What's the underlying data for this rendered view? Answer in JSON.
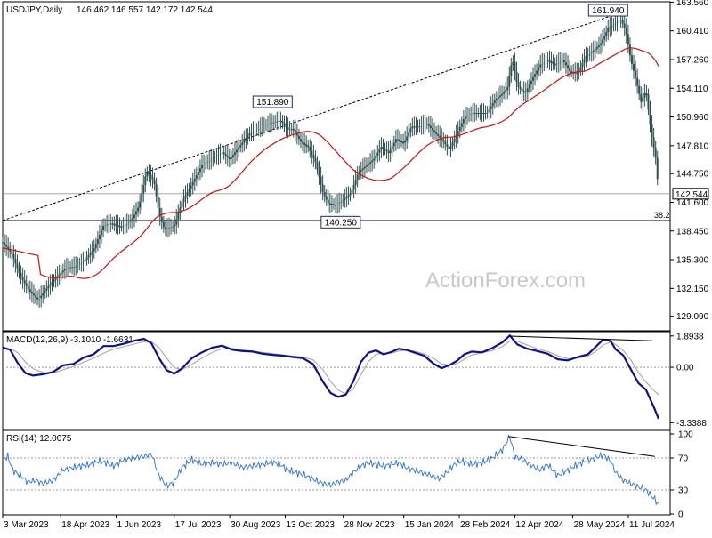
{
  "header": {
    "symbol": "USDJPY,Daily",
    "ohlc": "146.462 146.557 142.172 142.544",
    "watermark": "ActionForex.com"
  },
  "chart_data": [
    {
      "type": "candlestick",
      "title": "USDJPY,Daily",
      "ylim": [
        127.5,
        163.6
      ],
      "y_ticks": [
        "163.560",
        "160.410",
        "157.260",
        "154.110",
        "150.960",
        "147.810",
        "144.750",
        "141.600",
        "138.450",
        "135.300",
        "132.150",
        "129.090"
      ],
      "x_ticks": [
        "3 Mar 2023",
        "18 Apr 2023",
        "1 Jun 2023",
        "17 Jul 2023",
        "30 Aug 2023",
        "13 Oct 2023",
        "28 Nov 2023",
        "15 Jan 2024",
        "28 Feb 2024",
        "12 Apr 2024",
        "28 May 2024",
        "11 Jul 2024"
      ],
      "x_tick_days": [
        0,
        46,
        90,
        136,
        180,
        224,
        270,
        318,
        362,
        406,
        452,
        496
      ],
      "last_price": "142.544",
      "level_line": {
        "value": 139.6,
        "label": "38.2"
      },
      "annotations": [
        {
          "label": "151.890",
          "day": 214,
          "value": 151.89
        },
        {
          "label": "140.250",
          "day": 268,
          "value": 140.25
        },
        {
          "label": "161.940",
          "day": 480,
          "value": 161.94
        }
      ],
      "trendline": [
        [
          0,
          139.6
        ],
        [
          480,
          161.94
        ]
      ],
      "price_path": [
        [
          0,
          137.2
        ],
        [
          7,
          136.0
        ],
        [
          14,
          133.5
        ],
        [
          21,
          131.9
        ],
        [
          28,
          130.9
        ],
        [
          35,
          132.2
        ],
        [
          42,
          133.3
        ],
        [
          50,
          134.4
        ],
        [
          58,
          134.6
        ],
        [
          64,
          135.1
        ],
        [
          72,
          136.4
        ],
        [
          80,
          139.1
        ],
        [
          86,
          139.3
        ],
        [
          94,
          138.9
        ],
        [
          102,
          139.6
        ],
        [
          108,
          141.2
        ],
        [
          114,
          145.0
        ],
        [
          120,
          143.9
        ],
        [
          124,
          140.3
        ],
        [
          128,
          138.7
        ],
        [
          136,
          139.0
        ],
        [
          142,
          141.6
        ],
        [
          150,
          143.6
        ],
        [
          158,
          145.7
        ],
        [
          166,
          146.4
        ],
        [
          174,
          147.1
        ],
        [
          180,
          146.3
        ],
        [
          188,
          147.8
        ],
        [
          196,
          149.2
        ],
        [
          204,
          149.8
        ],
        [
          212,
          150.3
        ],
        [
          220,
          150.6
        ],
        [
          226,
          149.6
        ],
        [
          230,
          149.7
        ],
        [
          236,
          148.3
        ],
        [
          242,
          147.7
        ],
        [
          248,
          146.0
        ],
        [
          254,
          142.6
        ],
        [
          258,
          141.5
        ],
        [
          264,
          141.3
        ],
        [
          270,
          141.9
        ],
        [
          276,
          142.6
        ],
        [
          282,
          144.9
        ],
        [
          288,
          145.6
        ],
        [
          294,
          146.3
        ],
        [
          300,
          147.7
        ],
        [
          306,
          147.0
        ],
        [
          312,
          148.6
        ],
        [
          318,
          148.1
        ],
        [
          324,
          149.9
        ],
        [
          330,
          149.9
        ],
        [
          336,
          150.3
        ],
        [
          342,
          149.3
        ],
        [
          348,
          148.5
        ],
        [
          354,
          147.4
        ],
        [
          360,
          149.1
        ],
        [
          366,
          150.9
        ],
        [
          372,
          151.4
        ],
        [
          378,
          151.4
        ],
        [
          384,
          151.4
        ],
        [
          390,
          152.8
        ],
        [
          396,
          153.5
        ],
        [
          400,
          154.1
        ],
        [
          404,
          157.4
        ],
        [
          408,
          154.4
        ],
        [
          414,
          153.5
        ],
        [
          420,
          155.2
        ],
        [
          426,
          156.7
        ],
        [
          432,
          157.2
        ],
        [
          438,
          156.7
        ],
        [
          444,
          157.2
        ],
        [
          450,
          155.9
        ],
        [
          456,
          155.8
        ],
        [
          462,
          157.6
        ],
        [
          468,
          158.2
        ],
        [
          474,
          159.0
        ],
        [
          480,
          160.7
        ],
        [
          486,
          161.3
        ],
        [
          490,
          161.7
        ],
        [
          494,
          160.4
        ],
        [
          498,
          157.2
        ],
        [
          502,
          155.1
        ],
        [
          506,
          152.6
        ],
        [
          510,
          153.9
        ],
        [
          514,
          149.3
        ],
        [
          518,
          146.2
        ],
        [
          520,
          142.5
        ]
      ]
    },
    {
      "type": "line",
      "title": "MACD(12,26,9) -3.1010 -1.6631",
      "ylim": [
        -3.75,
        2.15
      ],
      "y_ticks": [
        "1.8938",
        "0.00",
        "-3.3388"
      ],
      "main_path": [
        [
          0,
          1.2
        ],
        [
          6,
          1.05
        ],
        [
          12,
          0.25
        ],
        [
          18,
          -0.35
        ],
        [
          24,
          -0.5
        ],
        [
          32,
          -0.42
        ],
        [
          40,
          -0.28
        ],
        [
          48,
          0.12
        ],
        [
          56,
          0.2
        ],
        [
          64,
          0.58
        ],
        [
          72,
          0.78
        ],
        [
          80,
          1.28
        ],
        [
          88,
          1.28
        ],
        [
          96,
          1.42
        ],
        [
          104,
          1.6
        ],
        [
          112,
          1.72
        ],
        [
          118,
          1.45
        ],
        [
          124,
          0.55
        ],
        [
          130,
          -0.18
        ],
        [
          136,
          -0.38
        ],
        [
          142,
          -0.08
        ],
        [
          150,
          0.55
        ],
        [
          158,
          0.9
        ],
        [
          166,
          1.18
        ],
        [
          174,
          1.3
        ],
        [
          182,
          1.06
        ],
        [
          190,
          0.98
        ],
        [
          198,
          0.95
        ],
        [
          206,
          0.82
        ],
        [
          214,
          0.75
        ],
        [
          222,
          0.7
        ],
        [
          230,
          0.62
        ],
        [
          238,
          0.55
        ],
        [
          246,
          0.2
        ],
        [
          254,
          -0.88
        ],
        [
          260,
          -1.55
        ],
        [
          266,
          -1.78
        ],
        [
          272,
          -1.65
        ],
        [
          278,
          -0.85
        ],
        [
          284,
          0.32
        ],
        [
          290,
          0.88
        ],
        [
          296,
          1.02
        ],
        [
          302,
          0.78
        ],
        [
          308,
          0.92
        ],
        [
          314,
          1.12
        ],
        [
          320,
          1.05
        ],
        [
          326,
          0.9
        ],
        [
          334,
          0.7
        ],
        [
          342,
          0.2
        ],
        [
          348,
          -0.05
        ],
        [
          354,
          0.12
        ],
        [
          360,
          0.38
        ],
        [
          366,
          0.78
        ],
        [
          372,
          0.95
        ],
        [
          380,
          0.9
        ],
        [
          388,
          1.15
        ],
        [
          396,
          1.5
        ],
        [
          402,
          1.92
        ],
        [
          408,
          1.38
        ],
        [
          416,
          1.12
        ],
        [
          424,
          0.98
        ],
        [
          432,
          0.82
        ],
        [
          440,
          0.48
        ],
        [
          448,
          0.42
        ],
        [
          456,
          0.62
        ],
        [
          464,
          0.78
        ],
        [
          470,
          1.22
        ],
        [
          476,
          1.68
        ],
        [
          482,
          1.58
        ],
        [
          486,
          1.08
        ],
        [
          492,
          0.72
        ],
        [
          498,
          -0.12
        ],
        [
          504,
          -0.95
        ],
        [
          510,
          -1.35
        ],
        [
          516,
          -2.35
        ],
        [
          520,
          -3.1
        ]
      ],
      "signal_path": [
        [
          0,
          1.1
        ],
        [
          6,
          1.12
        ],
        [
          12,
          0.88
        ],
        [
          18,
          0.32
        ],
        [
          24,
          -0.08
        ],
        [
          32,
          -0.3
        ],
        [
          40,
          -0.35
        ],
        [
          48,
          -0.15
        ],
        [
          56,
          0.05
        ],
        [
          64,
          0.3
        ],
        [
          72,
          0.55
        ],
        [
          80,
          0.85
        ],
        [
          88,
          1.1
        ],
        [
          96,
          1.25
        ],
        [
          104,
          1.4
        ],
        [
          112,
          1.55
        ],
        [
          118,
          1.55
        ],
        [
          124,
          1.18
        ],
        [
          130,
          0.55
        ],
        [
          136,
          -0.02
        ],
        [
          142,
          -0.15
        ],
        [
          150,
          0.18
        ],
        [
          158,
          0.55
        ],
        [
          166,
          0.9
        ],
        [
          174,
          1.12
        ],
        [
          182,
          1.15
        ],
        [
          190,
          1.05
        ],
        [
          198,
          0.98
        ],
        [
          206,
          0.9
        ],
        [
          214,
          0.82
        ],
        [
          222,
          0.75
        ],
        [
          230,
          0.68
        ],
        [
          238,
          0.62
        ],
        [
          246,
          0.45
        ],
        [
          254,
          -0.15
        ],
        [
          260,
          -0.85
        ],
        [
          266,
          -1.38
        ],
        [
          272,
          -1.6
        ],
        [
          278,
          -1.3
        ],
        [
          284,
          -0.45
        ],
        [
          290,
          0.35
        ],
        [
          296,
          0.78
        ],
        [
          302,
          0.85
        ],
        [
          308,
          0.86
        ],
        [
          314,
          0.98
        ],
        [
          320,
          1.04
        ],
        [
          326,
          0.98
        ],
        [
          334,
          0.82
        ],
        [
          342,
          0.52
        ],
        [
          348,
          0.22
        ],
        [
          354,
          0.12
        ],
        [
          360,
          0.22
        ],
        [
          366,
          0.48
        ],
        [
          372,
          0.75
        ],
        [
          380,
          0.88
        ],
        [
          388,
          1.0
        ],
        [
          396,
          1.25
        ],
        [
          402,
          1.6
        ],
        [
          408,
          1.58
        ],
        [
          416,
          1.34
        ],
        [
          424,
          1.12
        ],
        [
          432,
          0.95
        ],
        [
          440,
          0.7
        ],
        [
          448,
          0.52
        ],
        [
          456,
          0.55
        ],
        [
          464,
          0.68
        ],
        [
          470,
          0.95
        ],
        [
          476,
          1.35
        ],
        [
          482,
          1.52
        ],
        [
          486,
          1.38
        ],
        [
          492,
          1.02
        ],
        [
          498,
          0.45
        ],
        [
          504,
          -0.3
        ],
        [
          510,
          -0.88
        ],
        [
          516,
          -1.38
        ],
        [
          520,
          -1.66
        ]
      ]
    },
    {
      "type": "line",
      "title": "RSI(14) 12.0075",
      "ylim": [
        0,
        100
      ],
      "y_ticks": [
        "100",
        "70",
        "30",
        "0"
      ],
      "rsi_path": [
        [
          0,
          68
        ],
        [
          4,
          72
        ],
        [
          8,
          55
        ],
        [
          14,
          48
        ],
        [
          20,
          40
        ],
        [
          26,
          42
        ],
        [
          32,
          38
        ],
        [
          40,
          42
        ],
        [
          48,
          55
        ],
        [
          56,
          58
        ],
        [
          62,
          60
        ],
        [
          70,
          62
        ],
        [
          76,
          66
        ],
        [
          82,
          64
        ],
        [
          88,
          60
        ],
        [
          96,
          68
        ],
        [
          104,
          70
        ],
        [
          112,
          72
        ],
        [
          118,
          75
        ],
        [
          124,
          48
        ],
        [
          130,
          35
        ],
        [
          136,
          40
        ],
        [
          142,
          58
        ],
        [
          150,
          68
        ],
        [
          158,
          62
        ],
        [
          166,
          64
        ],
        [
          174,
          62
        ],
        [
          182,
          64
        ],
        [
          190,
          58
        ],
        [
          198,
          60
        ],
        [
          206,
          62
        ],
        [
          214,
          65
        ],
        [
          220,
          62
        ],
        [
          226,
          55
        ],
        [
          232,
          52
        ],
        [
          240,
          48
        ],
        [
          248,
          42
        ],
        [
          254,
          38
        ],
        [
          260,
          36
        ],
        [
          266,
          40
        ],
        [
          272,
          42
        ],
        [
          278,
          52
        ],
        [
          284,
          60
        ],
        [
          290,
          64
        ],
        [
          296,
          62
        ],
        [
          302,
          60
        ],
        [
          308,
          62
        ],
        [
          314,
          64
        ],
        [
          320,
          58
        ],
        [
          326,
          55
        ],
        [
          332,
          52
        ],
        [
          340,
          48
        ],
        [
          346,
          44
        ],
        [
          352,
          52
        ],
        [
          358,
          62
        ],
        [
          364,
          66
        ],
        [
          372,
          62
        ],
        [
          380,
          64
        ],
        [
          388,
          70
        ],
        [
          396,
          80
        ],
        [
          402,
          97
        ],
        [
          406,
          72
        ],
        [
          412,
          68
        ],
        [
          420,
          60
        ],
        [
          426,
          55
        ],
        [
          432,
          62
        ],
        [
          440,
          48
        ],
        [
          448,
          55
        ],
        [
          456,
          62
        ],
        [
          462,
          66
        ],
        [
          470,
          70
        ],
        [
          476,
          74
        ],
        [
          482,
          66
        ],
        [
          486,
          52
        ],
        [
          492,
          42
        ],
        [
          498,
          38
        ],
        [
          504,
          34
        ],
        [
          510,
          30
        ],
        [
          516,
          20
        ],
        [
          520,
          12
        ]
      ]
    }
  ]
}
